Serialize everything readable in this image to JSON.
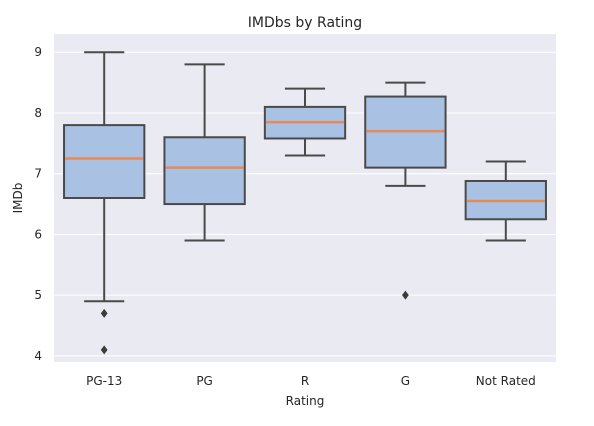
{
  "chart_data": {
    "type": "box",
    "title": "IMDbs by Rating",
    "xlabel": "Rating",
    "ylabel": "IMDb",
    "ylim": [
      3.9,
      9.3
    ],
    "yticks": [
      4,
      5,
      6,
      7,
      8,
      9
    ],
    "grid": true,
    "colors": {
      "background": "#eaeaf2",
      "box_fill": "#a9c2e3",
      "box_edge": "#4a4a4a",
      "median": "#e8895a",
      "grid": "#ffffff"
    },
    "categories": [
      "PG-13",
      "PG",
      "R",
      "G",
      "Not Rated"
    ],
    "boxes": [
      {
        "category": "PG-13",
        "whisker_low": 4.9,
        "q1": 6.6,
        "median": 7.25,
        "q3": 7.8,
        "whisker_high": 9.0,
        "outliers": [
          4.7,
          4.1
        ]
      },
      {
        "category": "PG",
        "whisker_low": 5.9,
        "q1": 6.5,
        "median": 7.1,
        "q3": 7.6,
        "whisker_high": 8.8,
        "outliers": []
      },
      {
        "category": "R",
        "whisker_low": 7.3,
        "q1": 7.58,
        "median": 7.85,
        "q3": 8.1,
        "whisker_high": 8.4,
        "outliers": []
      },
      {
        "category": "G",
        "whisker_low": 6.8,
        "q1": 7.1,
        "median": 7.7,
        "q3": 8.27,
        "whisker_high": 8.5,
        "outliers": [
          5.0
        ]
      },
      {
        "category": "Not Rated",
        "whisker_low": 5.9,
        "q1": 6.25,
        "median": 6.55,
        "q3": 6.88,
        "whisker_high": 7.2,
        "outliers": []
      }
    ]
  }
}
